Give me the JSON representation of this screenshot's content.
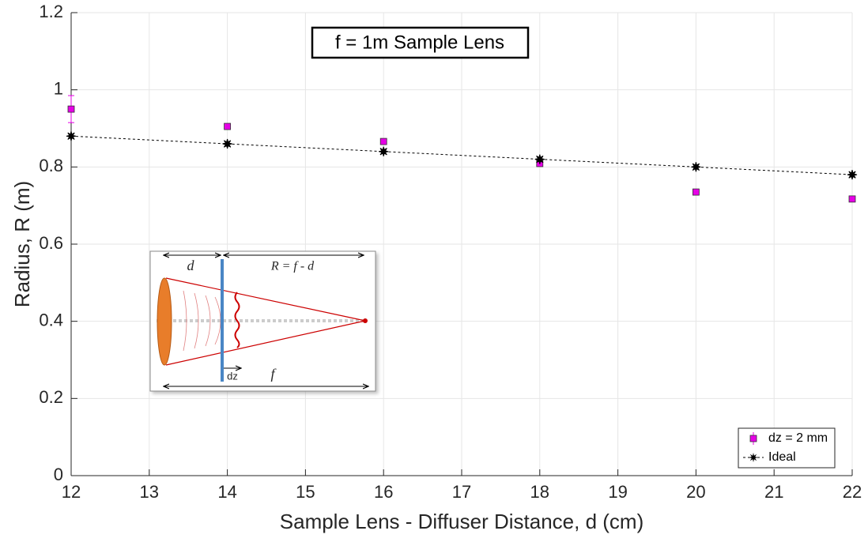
{
  "chart_data": {
    "type": "scatter",
    "title": "f = 1m Sample Lens",
    "x_label": "Sample Lens - Diffuser Distance, d (cm)",
    "y_label": "Radius, R (m)",
    "x": [
      12,
      14,
      16,
      18,
      20,
      22
    ],
    "series": [
      {
        "name": "dz = 2 mm",
        "color": "#e600e6",
        "marker": "square",
        "values": [
          0.95,
          0.905,
          0.866,
          0.809,
          0.735,
          0.717
        ],
        "errors": [
          0.035,
          null,
          null,
          null,
          null,
          null
        ]
      },
      {
        "name": "Ideal",
        "color": "#000000",
        "marker": "star",
        "line": "dashed",
        "values": [
          0.88,
          0.86,
          0.84,
          0.82,
          0.8,
          0.78
        ]
      }
    ],
    "xlim": [
      12,
      22
    ],
    "xticks": [
      12,
      13,
      14,
      15,
      16,
      17,
      18,
      19,
      20,
      21,
      22
    ],
    "ylim": [
      0,
      1.2
    ],
    "yticks": [
      0,
      0.2,
      0.4,
      0.6,
      0.8,
      1,
      1.2
    ],
    "grid": true,
    "legend": "bottom-right",
    "inset_labels": [
      "d",
      "R = f - d",
      "dz",
      "f"
    ]
  }
}
